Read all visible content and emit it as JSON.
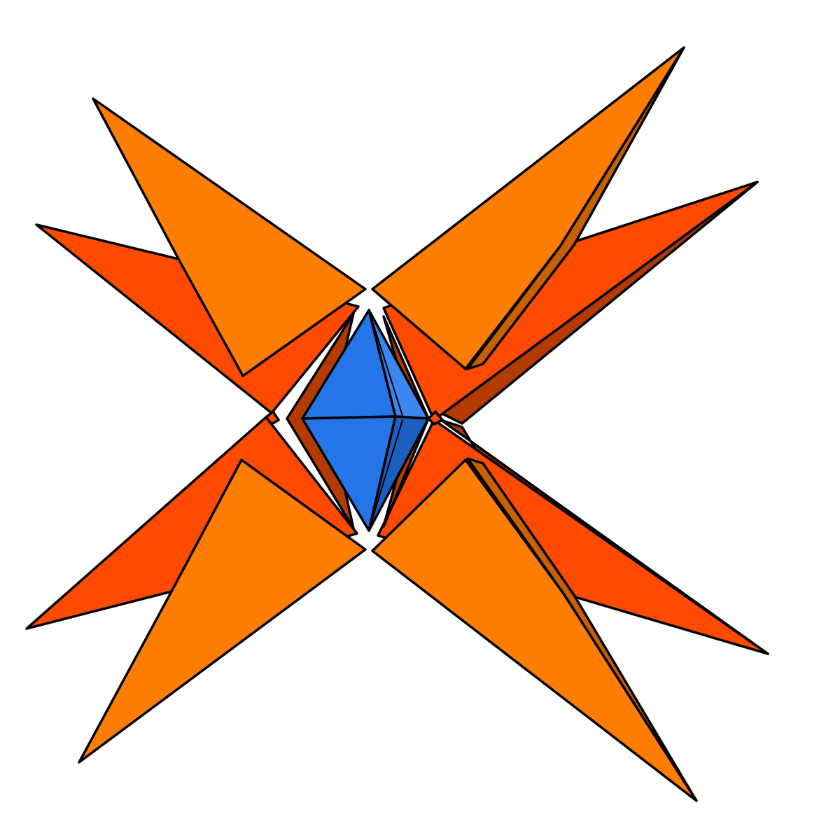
{
  "figure": {
    "subject": "stellated-polyhedron-figure",
    "colors": {
      "background": "#ffffff",
      "red_orange_face": "#ff4a00",
      "orange_face": "#ff7d00",
      "dark_side_face": "#b33a00",
      "dark_orange_side": "#c96000",
      "blue_face": "#2476e8",
      "blue_dark_face": "#1d5fc0",
      "blue_light_face": "#3b86f0",
      "edge": "#000000"
    }
  }
}
